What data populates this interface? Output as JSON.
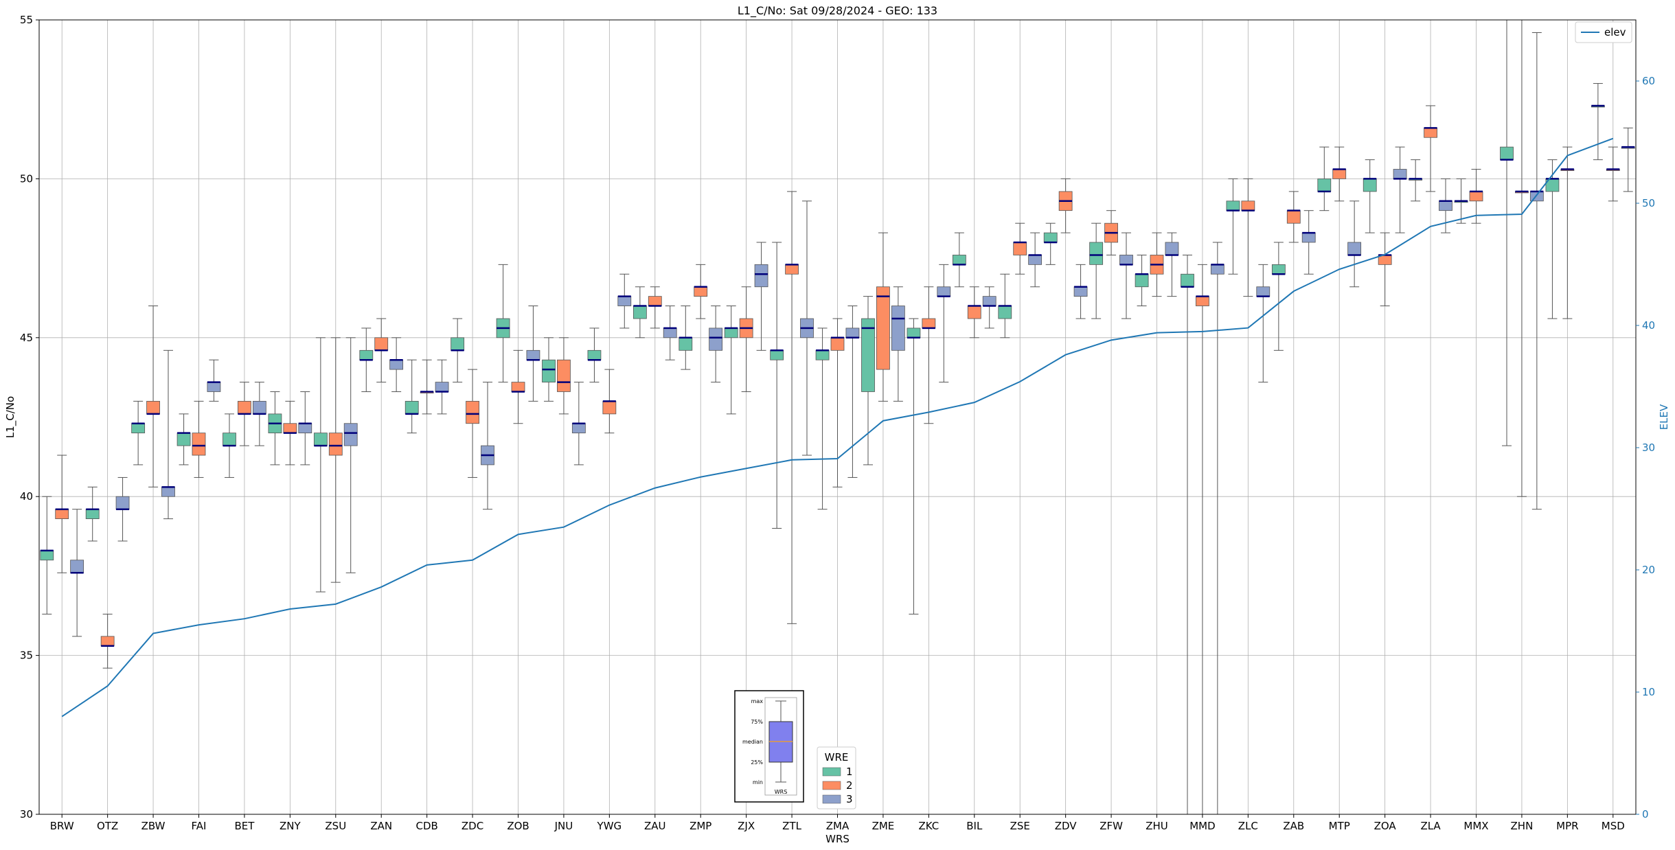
{
  "chart_data": {
    "type": "box",
    "title": "L1_C/No: Sat 09/28/2024 - GEO: 133",
    "xlabel": "WRS",
    "ylabel": "L1_C/No",
    "y2label": "ELEV",
    "ylim": [
      30,
      55
    ],
    "y2lim": [
      0,
      65
    ],
    "yticks": [
      30,
      35,
      40,
      45,
      50,
      55
    ],
    "y2ticks": [
      0,
      10,
      20,
      30,
      40,
      50,
      60
    ],
    "grid": true,
    "categories": [
      "BRW",
      "OTZ",
      "ZBW",
      "FAI",
      "BET",
      "ZNY",
      "ZSU",
      "ZAN",
      "CDB",
      "ZDC",
      "ZOB",
      "JNU",
      "YWG",
      "ZAU",
      "ZMP",
      "ZJX",
      "ZTL",
      "ZMA",
      "ZME",
      "ZKC",
      "BIL",
      "ZSE",
      "ZDV",
      "ZFW",
      "ZHU",
      "MMD",
      "ZLC",
      "ZAB",
      "MTP",
      "ZOA",
      "ZLA",
      "MMX",
      "ZHN",
      "MPR",
      "MSD"
    ],
    "legend_title": "WRE",
    "legend": [
      "1",
      "2",
      "3"
    ],
    "series_colors": {
      "1": "#66c2a5",
      "2": "#fc8d62",
      "3": "#8da0cb"
    },
    "line_series": {
      "name": "elev",
      "color": "#1f77b4",
      "values": [
        8.0,
        10.5,
        14.8,
        15.5,
        16.0,
        16.8,
        17.2,
        18.6,
        20.4,
        20.8,
        22.9,
        23.5,
        25.3,
        26.7,
        27.6,
        28.3,
        29.0,
        29.1,
        32.2,
        32.9,
        33.7,
        35.4,
        37.6,
        38.8,
        39.4,
        39.5,
        39.8,
        42.8,
        44.6,
        45.8,
        48.1,
        49.0,
        49.1,
        53.9,
        55.3
      ]
    },
    "boxes": [
      {
        "station": "BRW",
        "wre": "1",
        "min": 36.3,
        "q1": 38.0,
        "median": 38.3,
        "q3": 38.3,
        "max": 40.0
      },
      {
        "station": "BRW",
        "wre": "2",
        "min": 37.6,
        "q1": 39.3,
        "median": 39.6,
        "q3": 39.6,
        "max": 41.3
      },
      {
        "station": "BRW",
        "wre": "3",
        "min": 35.6,
        "q1": 37.6,
        "median": 37.6,
        "q3": 38.0,
        "max": 39.6
      },
      {
        "station": "OTZ",
        "wre": "1",
        "min": 38.6,
        "q1": 39.3,
        "median": 39.6,
        "q3": 39.6,
        "max": 40.3
      },
      {
        "station": "OTZ",
        "wre": "2",
        "min": 34.6,
        "q1": 35.3,
        "median": 35.3,
        "q3": 35.6,
        "max": 36.3
      },
      {
        "station": "OTZ",
        "wre": "3",
        "min": 38.6,
        "q1": 39.6,
        "median": 39.6,
        "q3": 40.0,
        "max": 40.6
      },
      {
        "station": "ZBW",
        "wre": "1",
        "min": 41.0,
        "q1": 42.0,
        "median": 42.3,
        "q3": 42.3,
        "max": 43.0
      },
      {
        "station": "ZBW",
        "wre": "2",
        "min": 40.3,
        "q1": 42.6,
        "median": 42.6,
        "q3": 43.0,
        "max": 46.0
      },
      {
        "station": "ZBW",
        "wre": "3",
        "min": 39.3,
        "q1": 40.0,
        "median": 40.3,
        "q3": 40.3,
        "max": 44.6
      },
      {
        "station": "FAI",
        "wre": "1",
        "min": 41.0,
        "q1": 41.6,
        "median": 42.0,
        "q3": 42.0,
        "max": 42.6
      },
      {
        "station": "FAI",
        "wre": "2",
        "min": 40.6,
        "q1": 41.3,
        "median": 41.6,
        "q3": 42.0,
        "max": 43.0
      },
      {
        "station": "FAI",
        "wre": "3",
        "min": 43.0,
        "q1": 43.3,
        "median": 43.6,
        "q3": 43.6,
        "max": 44.3
      },
      {
        "station": "BET",
        "wre": "1",
        "min": 40.6,
        "q1": 41.6,
        "median": 41.6,
        "q3": 42.0,
        "max": 42.6
      },
      {
        "station": "BET",
        "wre": "2",
        "min": 41.6,
        "q1": 42.6,
        "median": 42.6,
        "q3": 43.0,
        "max": 43.6
      },
      {
        "station": "BET",
        "wre": "3",
        "min": 41.6,
        "q1": 42.6,
        "median": 42.6,
        "q3": 43.0,
        "max": 43.6
      },
      {
        "station": "ZNY",
        "wre": "1",
        "min": 41.0,
        "q1": 42.0,
        "median": 42.3,
        "q3": 42.6,
        "max": 43.3
      },
      {
        "station": "ZNY",
        "wre": "2",
        "min": 41.0,
        "q1": 42.0,
        "median": 42.0,
        "q3": 42.3,
        "max": 43.0
      },
      {
        "station": "ZNY",
        "wre": "3",
        "min": 41.0,
        "q1": 42.0,
        "median": 42.3,
        "q3": 42.3,
        "max": 43.3
      },
      {
        "station": "ZSU",
        "wre": "1",
        "min": 37.0,
        "q1": 41.6,
        "median": 41.6,
        "q3": 42.0,
        "max": 45.0
      },
      {
        "station": "ZSU",
        "wre": "2",
        "min": 37.3,
        "q1": 41.3,
        "median": 41.6,
        "q3": 42.0,
        "max": 45.0
      },
      {
        "station": "ZSU",
        "wre": "3",
        "min": 37.6,
        "q1": 41.6,
        "median": 42.0,
        "q3": 42.3,
        "max": 45.0
      },
      {
        "station": "ZAN",
        "wre": "1",
        "min": 43.3,
        "q1": 44.3,
        "median": 44.3,
        "q3": 44.6,
        "max": 45.3
      },
      {
        "station": "ZAN",
        "wre": "2",
        "min": 43.6,
        "q1": 44.6,
        "median": 44.6,
        "q3": 45.0,
        "max": 45.6
      },
      {
        "station": "ZAN",
        "wre": "3",
        "min": 43.3,
        "q1": 44.0,
        "median": 44.3,
        "q3": 44.3,
        "max": 45.0
      },
      {
        "station": "CDB",
        "wre": "1",
        "min": 42.0,
        "q1": 42.6,
        "median": 42.6,
        "q3": 43.0,
        "max": 44.3
      },
      {
        "station": "CDB",
        "wre": "2",
        "min": 42.6,
        "q1": 43.3,
        "median": 43.3,
        "q3": 43.3,
        "max": 44.3
      },
      {
        "station": "CDB",
        "wre": "3",
        "min": 42.6,
        "q1": 43.3,
        "median": 43.3,
        "q3": 43.6,
        "max": 44.3
      },
      {
        "station": "ZDC",
        "wre": "1",
        "min": 43.6,
        "q1": 44.6,
        "median": 44.6,
        "q3": 45.0,
        "max": 45.6
      },
      {
        "station": "ZDC",
        "wre": "2",
        "min": 40.6,
        "q1": 42.3,
        "median": 42.6,
        "q3": 43.0,
        "max": 44.0
      },
      {
        "station": "ZDC",
        "wre": "3",
        "min": 39.6,
        "q1": 41.0,
        "median": 41.3,
        "q3": 41.6,
        "max": 43.6
      },
      {
        "station": "ZOB",
        "wre": "1",
        "min": 43.6,
        "q1": 45.0,
        "median": 45.3,
        "q3": 45.6,
        "max": 47.3
      },
      {
        "station": "ZOB",
        "wre": "2",
        "min": 42.3,
        "q1": 43.3,
        "median": 43.3,
        "q3": 43.6,
        "max": 44.6
      },
      {
        "station": "ZOB",
        "wre": "3",
        "min": 43.0,
        "q1": 44.3,
        "median": 44.3,
        "q3": 44.6,
        "max": 46.0
      },
      {
        "station": "JNU",
        "wre": "1",
        "min": 43.0,
        "q1": 43.6,
        "median": 44.0,
        "q3": 44.3,
        "max": 45.0
      },
      {
        "station": "JNU",
        "wre": "2",
        "min": 42.6,
        "q1": 43.3,
        "median": 43.6,
        "q3": 44.3,
        "max": 45.0
      },
      {
        "station": "JNU",
        "wre": "3",
        "min": 41.0,
        "q1": 42.0,
        "median": 42.3,
        "q3": 42.3,
        "max": 43.6
      },
      {
        "station": "YWG",
        "wre": "1",
        "min": 43.6,
        "q1": 44.3,
        "median": 44.3,
        "q3": 44.6,
        "max": 45.3
      },
      {
        "station": "YWG",
        "wre": "2",
        "min": 42.0,
        "q1": 42.6,
        "median": 43.0,
        "q3": 43.0,
        "max": 44.0
      },
      {
        "station": "YWG",
        "wre": "3",
        "min": 45.3,
        "q1": 46.0,
        "median": 46.3,
        "q3": 46.3,
        "max": 47.0
      },
      {
        "station": "ZAU",
        "wre": "1",
        "min": 45.0,
        "q1": 45.6,
        "median": 46.0,
        "q3": 46.0,
        "max": 46.6
      },
      {
        "station": "ZAU",
        "wre": "2",
        "min": 45.3,
        "q1": 46.0,
        "median": 46.0,
        "q3": 46.3,
        "max": 46.6
      },
      {
        "station": "ZAU",
        "wre": "3",
        "min": 44.3,
        "q1": 45.0,
        "median": 45.3,
        "q3": 45.3,
        "max": 46.0
      },
      {
        "station": "ZMP",
        "wre": "1",
        "min": 44.0,
        "q1": 44.6,
        "median": 45.0,
        "q3": 45.0,
        "max": 46.0
      },
      {
        "station": "ZMP",
        "wre": "2",
        "min": 45.6,
        "q1": 46.3,
        "median": 46.6,
        "q3": 46.6,
        "max": 47.3
      },
      {
        "station": "ZMP",
        "wre": "3",
        "min": 43.6,
        "q1": 44.6,
        "median": 45.0,
        "q3": 45.3,
        "max": 46.0
      },
      {
        "station": "ZJX",
        "wre": "1",
        "min": 42.6,
        "q1": 45.0,
        "median": 45.3,
        "q3": 45.3,
        "max": 46.0
      },
      {
        "station": "ZJX",
        "wre": "2",
        "min": 43.3,
        "q1": 45.0,
        "median": 45.3,
        "q3": 45.6,
        "max": 46.6
      },
      {
        "station": "ZJX",
        "wre": "3",
        "min": 44.6,
        "q1": 46.6,
        "median": 47.0,
        "q3": 47.3,
        "max": 48.0
      },
      {
        "station": "ZTL",
        "wre": "1",
        "min": 39.0,
        "q1": 44.3,
        "median": 44.6,
        "q3": 44.6,
        "max": 48.0
      },
      {
        "station": "ZTL",
        "wre": "2",
        "min": 36.0,
        "q1": 47.0,
        "median": 47.3,
        "q3": 47.3,
        "max": 49.6
      },
      {
        "station": "ZTL",
        "wre": "3",
        "min": 41.3,
        "q1": 45.0,
        "median": 45.3,
        "q3": 45.6,
        "max": 49.3
      },
      {
        "station": "ZMA",
        "wre": "1",
        "min": 39.6,
        "q1": 44.3,
        "median": 44.6,
        "q3": 44.6,
        "max": 45.3
      },
      {
        "station": "ZMA",
        "wre": "2",
        "min": 40.3,
        "q1": 44.6,
        "median": 45.0,
        "q3": 45.0,
        "max": 45.6
      },
      {
        "station": "ZMA",
        "wre": "3",
        "min": 40.6,
        "q1": 45.0,
        "median": 45.0,
        "q3": 45.3,
        "max": 46.0
      },
      {
        "station": "ZME",
        "wre": "1",
        "min": 41.0,
        "q1": 43.3,
        "median": 45.3,
        "q3": 45.6,
        "max": 46.3
      },
      {
        "station": "ZME",
        "wre": "2",
        "min": 43.0,
        "q1": 44.0,
        "median": 46.3,
        "q3": 46.6,
        "max": 48.3
      },
      {
        "station": "ZME",
        "wre": "3",
        "min": 43.0,
        "q1": 44.6,
        "median": 45.6,
        "q3": 46.0,
        "max": 46.6
      },
      {
        "station": "ZKC",
        "wre": "1",
        "min": 36.3,
        "q1": 45.0,
        "median": 45.0,
        "q3": 45.3,
        "max": 45.6
      },
      {
        "station": "ZKC",
        "wre": "2",
        "min": 42.3,
        "q1": 45.3,
        "median": 45.3,
        "q3": 45.6,
        "max": 46.6
      },
      {
        "station": "ZKC",
        "wre": "3",
        "min": 43.6,
        "q1": 46.3,
        "median": 46.3,
        "q3": 46.6,
        "max": 47.3
      },
      {
        "station": "BIL",
        "wre": "1",
        "min": 46.6,
        "q1": 47.3,
        "median": 47.3,
        "q3": 47.6,
        "max": 48.3
      },
      {
        "station": "BIL",
        "wre": "2",
        "min": 45.0,
        "q1": 45.6,
        "median": 46.0,
        "q3": 46.0,
        "max": 46.6
      },
      {
        "station": "BIL",
        "wre": "3",
        "min": 45.3,
        "q1": 46.0,
        "median": 46.0,
        "q3": 46.3,
        "max": 46.6
      },
      {
        "station": "ZSE",
        "wre": "1",
        "min": 45.0,
        "q1": 45.6,
        "median": 46.0,
        "q3": 46.0,
        "max": 47.0
      },
      {
        "station": "ZSE",
        "wre": "2",
        "min": 47.0,
        "q1": 47.6,
        "median": 48.0,
        "q3": 48.0,
        "max": 48.6
      },
      {
        "station": "ZSE",
        "wre": "3",
        "min": 46.6,
        "q1": 47.3,
        "median": 47.6,
        "q3": 47.6,
        "max": 48.3
      },
      {
        "station": "ZDV",
        "wre": "1",
        "min": 47.3,
        "q1": 48.0,
        "median": 48.0,
        "q3": 48.3,
        "max": 48.6
      },
      {
        "station": "ZDV",
        "wre": "2",
        "min": 48.3,
        "q1": 49.0,
        "median": 49.3,
        "q3": 49.6,
        "max": 50.0
      },
      {
        "station": "ZDV",
        "wre": "3",
        "min": 45.6,
        "q1": 46.3,
        "median": 46.6,
        "q3": 46.6,
        "max": 47.3
      },
      {
        "station": "ZFW",
        "wre": "1",
        "min": 45.6,
        "q1": 47.3,
        "median": 47.6,
        "q3": 48.0,
        "max": 48.6
      },
      {
        "station": "ZFW",
        "wre": "2",
        "min": 47.6,
        "q1": 48.0,
        "median": 48.3,
        "q3": 48.6,
        "max": 49.0
      },
      {
        "station": "ZFW",
        "wre": "3",
        "min": 45.6,
        "q1": 47.3,
        "median": 47.3,
        "q3": 47.6,
        "max": 48.3
      },
      {
        "station": "ZHU",
        "wre": "1",
        "min": 46.0,
        "q1": 46.6,
        "median": 47.0,
        "q3": 47.0,
        "max": 47.6
      },
      {
        "station": "ZHU",
        "wre": "2",
        "min": 46.3,
        "q1": 47.0,
        "median": 47.3,
        "q3": 47.6,
        "max": 48.3
      },
      {
        "station": "ZHU",
        "wre": "3",
        "min": 46.3,
        "q1": 47.6,
        "median": 47.6,
        "q3": 48.0,
        "max": 48.3
      },
      {
        "station": "MMD",
        "wre": "1",
        "min": 30.0,
        "q1": 46.6,
        "median": 46.6,
        "q3": 47.0,
        "max": 47.6
      },
      {
        "station": "MMD",
        "wre": "2",
        "min": 30.0,
        "q1": 46.0,
        "median": 46.3,
        "q3": 46.3,
        "max": 47.3
      },
      {
        "station": "MMD",
        "wre": "3",
        "min": 30.0,
        "q1": 47.0,
        "median": 47.3,
        "q3": 47.3,
        "max": 48.0
      },
      {
        "station": "ZLC",
        "wre": "1",
        "min": 47.0,
        "q1": 49.0,
        "median": 49.0,
        "q3": 49.3,
        "max": 50.0
      },
      {
        "station": "ZLC",
        "wre": "2",
        "min": 46.3,
        "q1": 49.0,
        "median": 49.0,
        "q3": 49.3,
        "max": 50.0
      },
      {
        "station": "ZLC",
        "wre": "3",
        "min": 43.6,
        "q1": 46.3,
        "median": 46.3,
        "q3": 46.6,
        "max": 47.3
      },
      {
        "station": "ZAB",
        "wre": "1",
        "min": 44.6,
        "q1": 47.0,
        "median": 47.0,
        "q3": 47.3,
        "max": 48.0
      },
      {
        "station": "ZAB",
        "wre": "2",
        "min": 48.0,
        "q1": 48.6,
        "median": 49.0,
        "q3": 49.0,
        "max": 49.6
      },
      {
        "station": "ZAB",
        "wre": "3",
        "min": 47.0,
        "q1": 48.0,
        "median": 48.3,
        "q3": 48.3,
        "max": 49.0
      },
      {
        "station": "MTP",
        "wre": "1",
        "min": 49.0,
        "q1": 49.6,
        "median": 49.6,
        "q3": 50.0,
        "max": 51.0
      },
      {
        "station": "MTP",
        "wre": "2",
        "min": 49.3,
        "q1": 50.0,
        "median": 50.3,
        "q3": 50.3,
        "max": 51.0
      },
      {
        "station": "MTP",
        "wre": "3",
        "min": 46.6,
        "q1": 47.6,
        "median": 47.6,
        "q3": 48.0,
        "max": 49.3
      },
      {
        "station": "ZOA",
        "wre": "1",
        "min": 48.3,
        "q1": 49.6,
        "median": 50.0,
        "q3": 50.0,
        "max": 50.6
      },
      {
        "station": "ZOA",
        "wre": "2",
        "min": 46.0,
        "q1": 47.3,
        "median": 47.6,
        "q3": 47.6,
        "max": 48.3
      },
      {
        "station": "ZOA",
        "wre": "3",
        "min": 48.3,
        "q1": 50.0,
        "median": 50.0,
        "q3": 50.3,
        "max": 51.0
      },
      {
        "station": "ZLA",
        "wre": "1",
        "min": 49.3,
        "q1": 50.0,
        "median": 50.0,
        "q3": 50.0,
        "max": 50.6
      },
      {
        "station": "ZLA",
        "wre": "2",
        "min": 49.6,
        "q1": 51.3,
        "median": 51.6,
        "q3": 51.6,
        "max": 52.3
      },
      {
        "station": "ZLA",
        "wre": "3",
        "min": 48.3,
        "q1": 49.0,
        "median": 49.3,
        "q3": 49.3,
        "max": 50.0
      },
      {
        "station": "MMX",
        "wre": "1",
        "min": 48.6,
        "q1": 49.3,
        "median": 49.3,
        "q3": 49.3,
        "max": 50.0
      },
      {
        "station": "MMX",
        "wre": "2",
        "min": 48.6,
        "q1": 49.3,
        "median": 49.6,
        "q3": 49.6,
        "max": 50.3
      },
      {
        "station": "ZHN",
        "wre": "1",
        "min": 41.6,
        "q1": 50.6,
        "median": 50.6,
        "q3": 51.0,
        "max": 55.0
      },
      {
        "station": "ZHN",
        "wre": "2",
        "min": 40.0,
        "q1": 49.6,
        "median": 49.6,
        "q3": 49.6,
        "max": 55.0
      },
      {
        "station": "ZHN",
        "wre": "3",
        "min": 39.6,
        "q1": 49.3,
        "median": 49.6,
        "q3": 49.6,
        "max": 54.6
      },
      {
        "station": "MPR",
        "wre": "1",
        "min": 45.6,
        "q1": 49.6,
        "median": 50.0,
        "q3": 50.0,
        "max": 50.6
      },
      {
        "station": "MPR",
        "wre": "2",
        "min": 45.6,
        "q1": 50.3,
        "median": 50.3,
        "q3": 50.3,
        "max": 51.0
      },
      {
        "station": "MSD",
        "wre": "1",
        "min": 50.6,
        "q1": 52.3,
        "median": 52.3,
        "q3": 52.3,
        "max": 53.0
      },
      {
        "station": "MSD",
        "wre": "2",
        "min": 49.3,
        "q1": 50.3,
        "median": 50.3,
        "q3": 50.3,
        "max": 51.0
      },
      {
        "station": "MSD",
        "wre": "3",
        "min": 49.6,
        "q1": 51.0,
        "median": 51.0,
        "q3": 51.0,
        "max": 51.6
      }
    ],
    "inset_key": {
      "labels": [
        "max",
        "75%",
        "median",
        "25%",
        "min"
      ],
      "caption": "WRS"
    },
    "line_legend_placement": "top-right",
    "wre_legend_placement": "bottom-center"
  }
}
